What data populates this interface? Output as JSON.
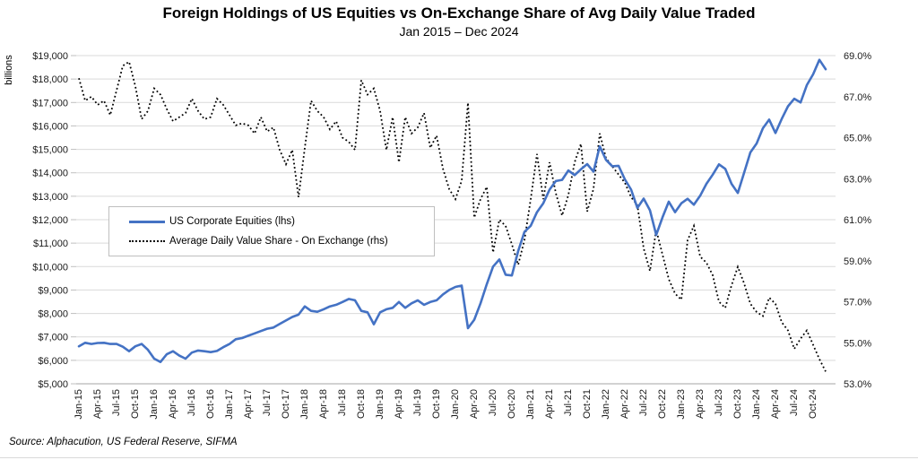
{
  "title": "Foreign Holdings of US Equities vs On-Exchange Share of Avg Daily Value Traded",
  "subtitle": "Jan 2015 – Dec 2024",
  "source_note": "Source: Alphacution, US Federal Reserve, SIFMA",
  "left_axis": {
    "unit_label": "billions",
    "tick_labels": [
      "$19,000",
      "$18,000",
      "$17,000",
      "$16,000",
      "$15,000",
      "$14,000",
      "$13,000",
      "$12,000",
      "$11,000",
      "$10,000",
      "$9,000",
      "$8,000",
      "$7,000",
      "$6,000",
      "$5,000"
    ]
  },
  "right_axis": {
    "tick_labels": [
      "69.0%",
      "67.0%",
      "65.0%",
      "63.0%",
      "61.0%",
      "59.0%",
      "57.0%",
      "55.0%",
      "53.0%"
    ]
  },
  "x_axis": {
    "tick_labels": [
      "Jan-15",
      "Apr-15",
      "Jul-15",
      "Oct-15",
      "Jan-16",
      "Apr-16",
      "Jul-16",
      "Oct-16",
      "Jan-17",
      "Apr-17",
      "Jul-17",
      "Oct-17",
      "Jan-18",
      "Apr-18",
      "Jul-18",
      "Oct-18",
      "Jan-19",
      "Apr-19",
      "Jul-19",
      "Oct-19",
      "Jan-20",
      "Apr-20",
      "Jul-20",
      "Oct-20",
      "Jan-21",
      "Apr-21",
      "Jul-21",
      "Oct-21",
      "Jan-22",
      "Apr-22",
      "Jul-22",
      "Oct-22",
      "Jan-23",
      "Apr-23",
      "Jul-23",
      "Oct-23",
      "Jan-24",
      "Apr-24",
      "Jul-24",
      "Oct-24"
    ]
  },
  "legend": {
    "items": [
      {
        "label": "US Corporate Equities (lhs)",
        "style": "solid",
        "color": "#4472C4"
      },
      {
        "label": "Average Daily Value Share - On Exchange (rhs)",
        "style": "dotted",
        "color": "#000000"
      }
    ]
  },
  "colors": {
    "equities_line": "#4472C4",
    "share_line": "#000000",
    "gridline": "#d9d9d9",
    "axis_line": "#a6a6a6",
    "tick": "#bfbfbf"
  },
  "chart_data": {
    "type": "line",
    "title": "Foreign Holdings of US Equities vs On-Exchange Share of Avg Daily Value Traded",
    "subtitle": "Jan 2015 – Dec 2024",
    "frequency": "monthly",
    "x_start": "Jan-2015",
    "x_end": "Dec-2024",
    "grid": true,
    "left_ylim": [
      5000,
      19000
    ],
    "right_ylim": [
      53,
      69
    ],
    "legend_position": "middle-left-box",
    "series": [
      {
        "name": "US Corporate Equities (lhs)",
        "axis": "left",
        "unit": "USD billions",
        "line": "solid",
        "color": "#4472C4",
        "values": [
          6600,
          6750,
          6700,
          6740,
          6750,
          6700,
          6700,
          6580,
          6390,
          6600,
          6700,
          6450,
          6070,
          5930,
          6260,
          6390,
          6200,
          6070,
          6330,
          6420,
          6390,
          6350,
          6400,
          6560,
          6700,
          6900,
          6950,
          7050,
          7150,
          7250,
          7350,
          7400,
          7550,
          7700,
          7850,
          7950,
          8300,
          8110,
          8070,
          8180,
          8300,
          8370,
          8490,
          8620,
          8560,
          8110,
          8050,
          7540,
          8050,
          8180,
          8240,
          8490,
          8240,
          8430,
          8560,
          8370,
          8490,
          8560,
          8810,
          9000,
          9130,
          9190,
          7370,
          7730,
          8430,
          9250,
          10000,
          10300,
          9650,
          9620,
          10660,
          11480,
          11740,
          12320,
          12700,
          13280,
          13650,
          13700,
          14100,
          13900,
          14150,
          14370,
          14050,
          15130,
          14550,
          14280,
          14300,
          13720,
          13280,
          12500,
          12900,
          12400,
          11350,
          12100,
          12770,
          12320,
          12700,
          12890,
          12640,
          13020,
          13530,
          13920,
          14360,
          14170,
          13530,
          13140,
          14000,
          14870,
          15250,
          15900,
          16270,
          15700,
          16300,
          16840,
          17160,
          17000,
          17740,
          18200,
          18820,
          18420
        ]
      },
      {
        "name": "Average Daily Value Share - On Exchange (rhs)",
        "axis": "right",
        "unit": "percent",
        "line": "dotted",
        "color": "#000000",
        "values": [
          67.9,
          66.8,
          67.0,
          66.6,
          66.8,
          66.1,
          67.3,
          68.5,
          68.7,
          67.5,
          65.9,
          66.3,
          67.4,
          67.1,
          66.4,
          65.8,
          66.0,
          66.2,
          66.9,
          66.3,
          65.9,
          66.0,
          66.9,
          66.6,
          66.1,
          65.6,
          65.7,
          65.6,
          65.2,
          66.0,
          65.3,
          65.5,
          64.4,
          63.7,
          64.4,
          62.1,
          64.5,
          66.8,
          66.3,
          66.0,
          65.4,
          65.8,
          65.0,
          64.8,
          64.4,
          67.8,
          67.1,
          67.4,
          66.3,
          64.4,
          66.0,
          63.8,
          66.0,
          65.2,
          65.5,
          66.2,
          64.5,
          65.1,
          63.5,
          62.5,
          62.0,
          62.9,
          66.7,
          61.1,
          62.0,
          62.6,
          59.4,
          61.0,
          60.7,
          59.8,
          58.8,
          60.0,
          62.0,
          64.2,
          62.0,
          63.8,
          62.3,
          61.2,
          62.2,
          63.8,
          64.7,
          61.4,
          62.5,
          65.2,
          64.0,
          63.6,
          63.2,
          62.8,
          62.1,
          61.7,
          59.6,
          58.5,
          60.5,
          59.3,
          58.1,
          57.4,
          57.1,
          60.0,
          60.7,
          59.2,
          58.9,
          58.3,
          57.0,
          56.7,
          57.8,
          58.7,
          57.9,
          56.9,
          56.5,
          56.3,
          57.2,
          56.9,
          56.0,
          55.6,
          54.7,
          55.2,
          55.6,
          54.9,
          54.2,
          53.6
        ]
      }
    ]
  }
}
